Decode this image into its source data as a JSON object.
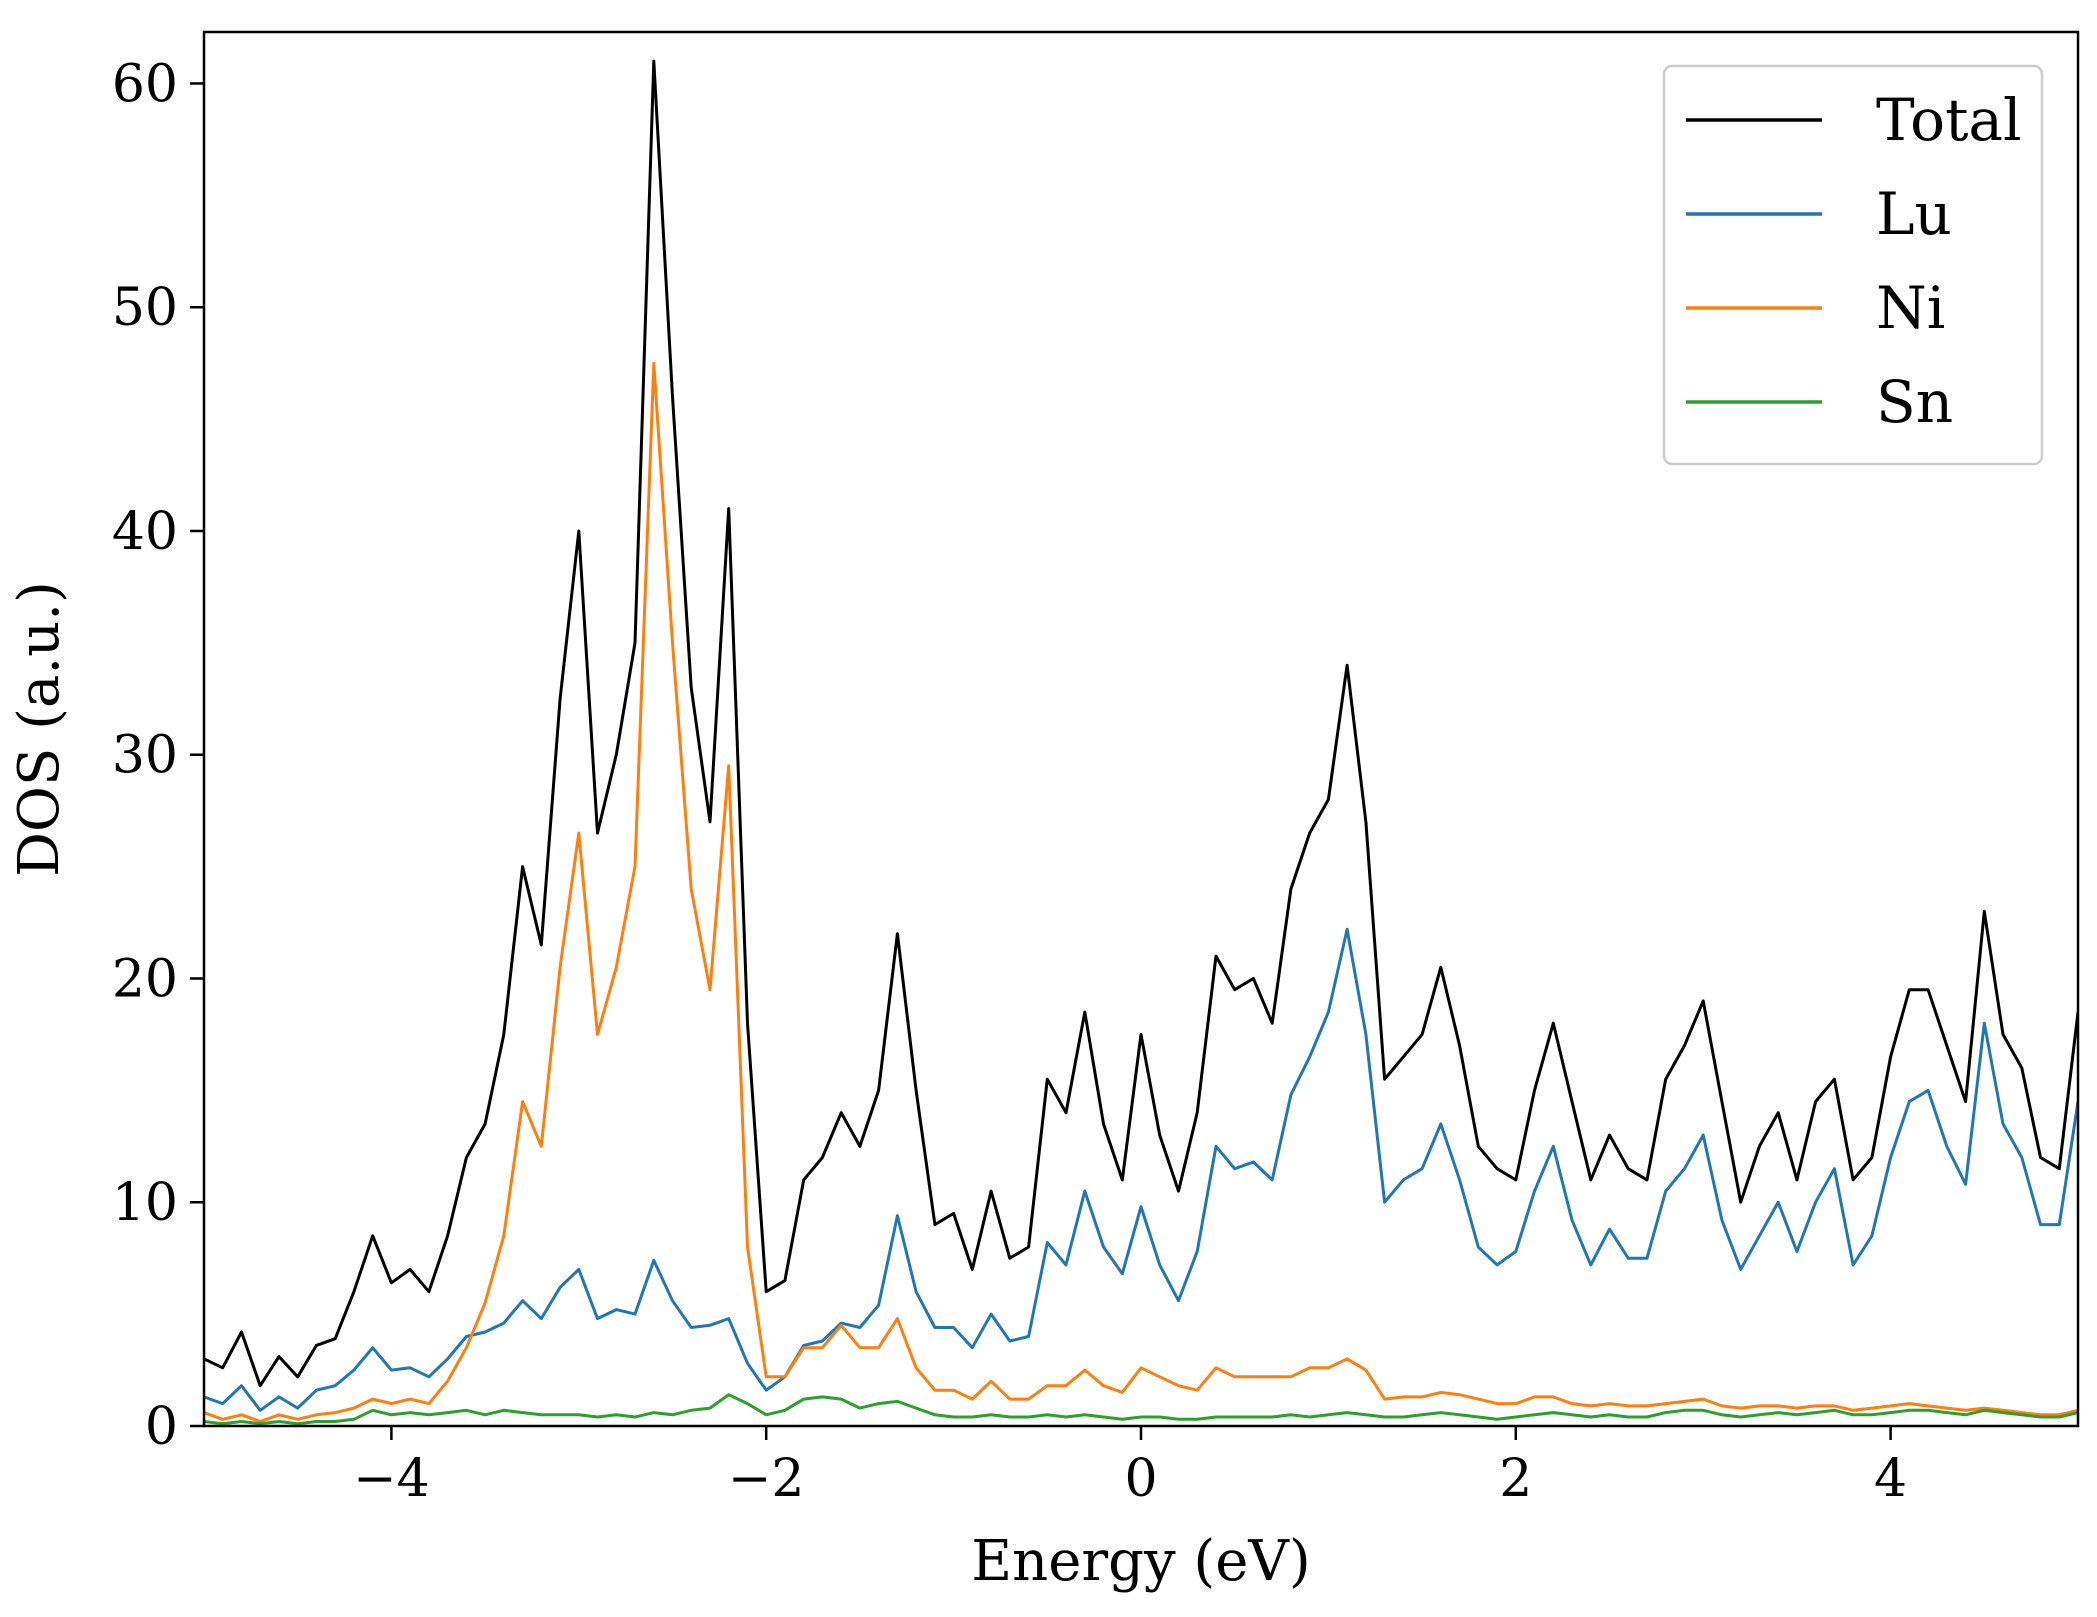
{
  "chart_data": {
    "type": "line",
    "xlabel": "Energy (eV)",
    "ylabel": "DOS (a.u.)",
    "xlim": [
      -5,
      5
    ],
    "ylim": [
      0,
      62.3
    ],
    "xticks": [
      -4,
      -2,
      0,
      2,
      4
    ],
    "xtick_labels": [
      "−4",
      "−2",
      "0",
      "2",
      "4"
    ],
    "yticks": [
      0,
      10,
      20,
      30,
      40,
      50,
      60
    ],
    "ytick_labels": [
      "0",
      "10",
      "20",
      "30",
      "40",
      "50",
      "60"
    ],
    "grid": false,
    "legend_position": "top-right",
    "x": [
      -5.0,
      -4.9,
      -4.8,
      -4.7,
      -4.6,
      -4.5,
      -4.4,
      -4.3,
      -4.2,
      -4.1,
      -4.0,
      -3.9,
      -3.8,
      -3.7,
      -3.6,
      -3.5,
      -3.4,
      -3.3,
      -3.2,
      -3.1,
      -3.0,
      -2.9,
      -2.8,
      -2.7,
      -2.6,
      -2.5,
      -2.4,
      -2.3,
      -2.2,
      -2.1,
      -2.0,
      -1.9,
      -1.8,
      -1.7,
      -1.6,
      -1.5,
      -1.4,
      -1.3,
      -1.2,
      -1.1,
      -1.0,
      -0.9,
      -0.8,
      -0.7,
      -0.6,
      -0.5,
      -0.4,
      -0.3,
      -0.2,
      -0.1,
      0.0,
      0.1,
      0.2,
      0.3,
      0.4,
      0.5,
      0.6,
      0.7,
      0.8,
      0.9,
      1.0,
      1.1,
      1.2,
      1.3,
      1.4,
      1.5,
      1.6,
      1.7,
      1.8,
      1.9,
      2.0,
      2.1,
      2.2,
      2.3,
      2.4,
      2.5,
      2.6,
      2.7,
      2.8,
      2.9,
      3.0,
      3.1,
      3.2,
      3.3,
      3.4,
      3.5,
      3.6,
      3.7,
      3.8,
      3.9,
      4.0,
      4.1,
      4.2,
      4.3,
      4.4,
      4.5,
      4.6,
      4.7,
      4.8,
      4.9,
      5.0
    ],
    "series": [
      {
        "name": "Total",
        "color": "#000000",
        "values": [
          3.0,
          2.6,
          4.2,
          1.8,
          3.1,
          2.2,
          3.6,
          3.9,
          6.0,
          8.5,
          6.4,
          7.0,
          6.0,
          8.5,
          12.0,
          13.5,
          17.5,
          25.0,
          21.5,
          32.5,
          40.0,
          26.5,
          30.0,
          35.0,
          61.0,
          46.0,
          33.0,
          27.0,
          41.0,
          18.0,
          6.0,
          6.5,
          11.0,
          12.0,
          14.0,
          12.5,
          15.0,
          22.0,
          15.0,
          9.0,
          9.5,
          7.0,
          10.5,
          7.5,
          8.0,
          15.5,
          14.0,
          18.5,
          13.5,
          11.0,
          17.5,
          13.0,
          10.5,
          14.0,
          21.0,
          19.5,
          20.0,
          18.0,
          24.0,
          26.5,
          28.0,
          34.0,
          27.0,
          15.5,
          16.5,
          17.5,
          20.5,
          17.0,
          12.5,
          11.5,
          11.0,
          15.0,
          18.0,
          14.5,
          11.0,
          13.0,
          11.5,
          11.0,
          15.5,
          17.0,
          19.0,
          14.5,
          10.0,
          12.5,
          14.0,
          11.0,
          14.5,
          15.5,
          11.0,
          12.0,
          16.5,
          19.5,
          19.5,
          17.0,
          14.5,
          23.0,
          17.5,
          16.0,
          12.0,
          11.5,
          18.5
        ]
      },
      {
        "name": "Lu",
        "color": "#1f77b4",
        "values": [
          1.3,
          1.0,
          1.8,
          0.7,
          1.3,
          0.8,
          1.6,
          1.8,
          2.5,
          3.5,
          2.5,
          2.6,
          2.2,
          3.0,
          4.0,
          4.2,
          4.6,
          5.6,
          4.8,
          6.2,
          7.0,
          4.8,
          5.2,
          5.0,
          7.4,
          5.6,
          4.4,
          4.5,
          4.8,
          2.8,
          1.6,
          2.2,
          3.6,
          3.8,
          4.6,
          4.4,
          5.4,
          9.4,
          6.0,
          4.4,
          4.4,
          3.5,
          5.0,
          3.8,
          4.0,
          8.2,
          7.2,
          10.5,
          8.0,
          6.8,
          9.8,
          7.2,
          5.6,
          7.8,
          12.5,
          11.5,
          11.8,
          11.0,
          14.8,
          16.5,
          18.5,
          22.2,
          17.5,
          10.0,
          11.0,
          11.5,
          13.5,
          11.0,
          8.0,
          7.2,
          7.8,
          10.5,
          12.5,
          9.2,
          7.2,
          8.8,
          7.5,
          7.5,
          10.5,
          11.5,
          13.0,
          9.2,
          7.0,
          8.5,
          10.0,
          7.8,
          10.0,
          11.5,
          7.2,
          8.5,
          12.0,
          14.5,
          15.0,
          12.5,
          10.8,
          18.0,
          13.5,
          12.0,
          9.0,
          9.0,
          14.5
        ]
      },
      {
        "name": "Ni",
        "color": "#ff7f0e",
        "values": [
          0.6,
          0.3,
          0.5,
          0.2,
          0.5,
          0.3,
          0.5,
          0.6,
          0.8,
          1.2,
          1.0,
          1.2,
          1.0,
          2.0,
          3.5,
          5.5,
          8.5,
          14.5,
          12.5,
          20.5,
          26.5,
          17.5,
          20.5,
          25.0,
          47.5,
          35.0,
          24.0,
          19.5,
          29.5,
          8.0,
          2.2,
          2.2,
          3.5,
          3.5,
          4.5,
          3.5,
          3.5,
          4.8,
          2.6,
          1.6,
          1.6,
          1.2,
          2.0,
          1.2,
          1.2,
          1.8,
          1.8,
          2.5,
          1.8,
          1.5,
          2.6,
          2.2,
          1.8,
          1.6,
          2.6,
          2.2,
          2.2,
          2.2,
          2.2,
          2.6,
          2.6,
          3.0,
          2.5,
          1.2,
          1.3,
          1.3,
          1.5,
          1.4,
          1.2,
          1.0,
          1.0,
          1.3,
          1.3,
          1.0,
          0.9,
          1.0,
          0.9,
          0.9,
          1.0,
          1.1,
          1.2,
          0.9,
          0.8,
          0.9,
          0.9,
          0.8,
          0.9,
          0.9,
          0.7,
          0.8,
          0.9,
          1.0,
          0.9,
          0.8,
          0.7,
          0.8,
          0.7,
          0.6,
          0.5,
          0.5,
          0.7
        ]
      },
      {
        "name": "Sn",
        "color": "#2ca02c",
        "values": [
          0.2,
          0.1,
          0.2,
          0.1,
          0.2,
          0.1,
          0.2,
          0.2,
          0.3,
          0.7,
          0.5,
          0.6,
          0.5,
          0.6,
          0.7,
          0.5,
          0.7,
          0.6,
          0.5,
          0.5,
          0.5,
          0.4,
          0.5,
          0.4,
          0.6,
          0.5,
          0.7,
          0.8,
          1.4,
          1.0,
          0.5,
          0.7,
          1.2,
          1.3,
          1.2,
          0.8,
          1.0,
          1.1,
          0.8,
          0.5,
          0.4,
          0.4,
          0.5,
          0.4,
          0.4,
          0.5,
          0.4,
          0.5,
          0.4,
          0.3,
          0.4,
          0.4,
          0.3,
          0.3,
          0.4,
          0.4,
          0.4,
          0.4,
          0.5,
          0.4,
          0.5,
          0.6,
          0.5,
          0.4,
          0.4,
          0.5,
          0.6,
          0.5,
          0.4,
          0.3,
          0.4,
          0.5,
          0.6,
          0.5,
          0.4,
          0.5,
          0.4,
          0.4,
          0.6,
          0.7,
          0.7,
          0.5,
          0.4,
          0.5,
          0.6,
          0.5,
          0.6,
          0.7,
          0.5,
          0.5,
          0.6,
          0.7,
          0.7,
          0.6,
          0.5,
          0.7,
          0.6,
          0.5,
          0.4,
          0.4,
          0.6
        ]
      }
    ]
  }
}
